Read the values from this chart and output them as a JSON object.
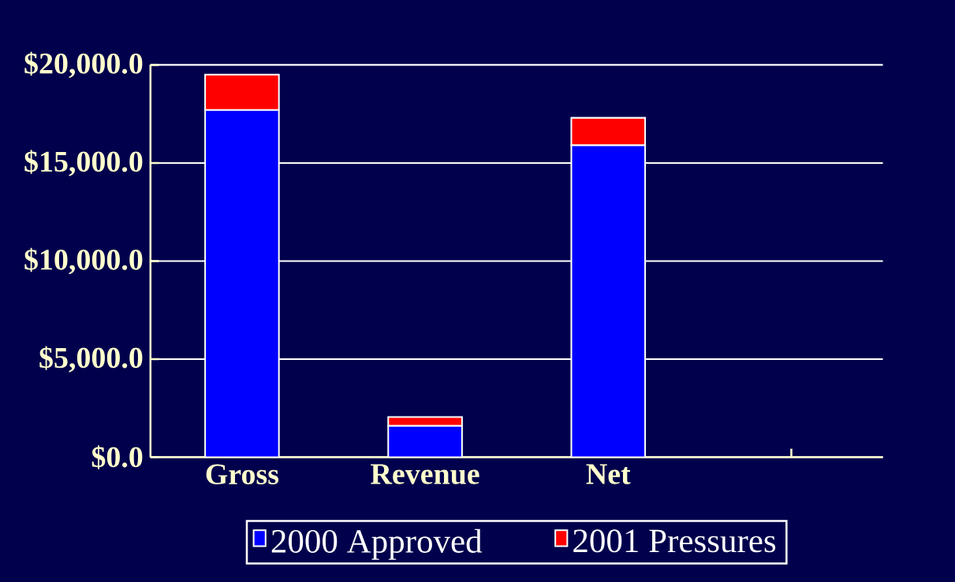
{
  "chart_data": {
    "type": "bar",
    "stacked": true,
    "categories": [
      "Gross",
      "Revenue",
      "Net",
      null
    ],
    "series": [
      {
        "name": "2000 Approved",
        "color": "#0000ff",
        "values": [
          17700,
          1600,
          15900,
          null
        ]
      },
      {
        "name": "2001 Pressures",
        "color": "#ff0000",
        "values": [
          1800,
          450,
          1400,
          null
        ]
      }
    ],
    "ylim": [
      0,
      20000
    ],
    "yticks": [
      {
        "value": 0,
        "label": "$0.0"
      },
      {
        "value": 5000,
        "label": "$5,000.0"
      },
      {
        "value": 10000,
        "label": "$10,000.0"
      },
      {
        "value": 15000,
        "label": "$15,000.0"
      },
      {
        "value": 20000,
        "label": "$20,000.0"
      }
    ],
    "grid": "y",
    "legend": "bottom"
  }
}
